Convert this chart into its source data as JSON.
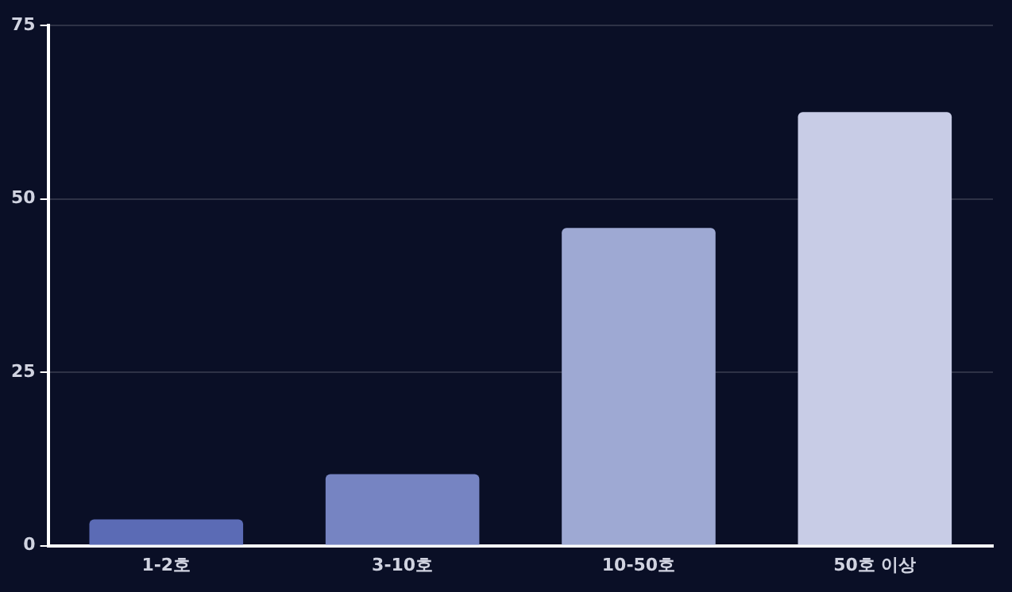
{
  "chart_data": {
    "type": "bar",
    "categories": [
      "1-2호",
      "3-10호",
      "10-50호",
      "50호 이상"
    ],
    "values": [
      3.8,
      10.3,
      45.8,
      62.5
    ],
    "colors": [
      "#5b6bb5",
      "#7684c2",
      "#9ea9d3",
      "#c8cce6"
    ],
    "ylim": [
      0,
      75
    ],
    "yticks": [
      0,
      25,
      50,
      75
    ],
    "grid": "y",
    "legend": false
  }
}
